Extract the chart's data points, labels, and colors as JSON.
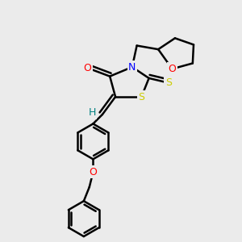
{
  "background_color": "#ebebeb",
  "atom_colors": {
    "C": "#000000",
    "N": "#0000ff",
    "O": "#ff0000",
    "S": "#cccc00",
    "H": "#008080"
  },
  "bond_color": "#000000",
  "bond_width": 1.8,
  "figsize": [
    3.0,
    3.0
  ],
  "dpi": 100,
  "xlim": [
    0,
    10
  ],
  "ylim": [
    0,
    13
  ]
}
